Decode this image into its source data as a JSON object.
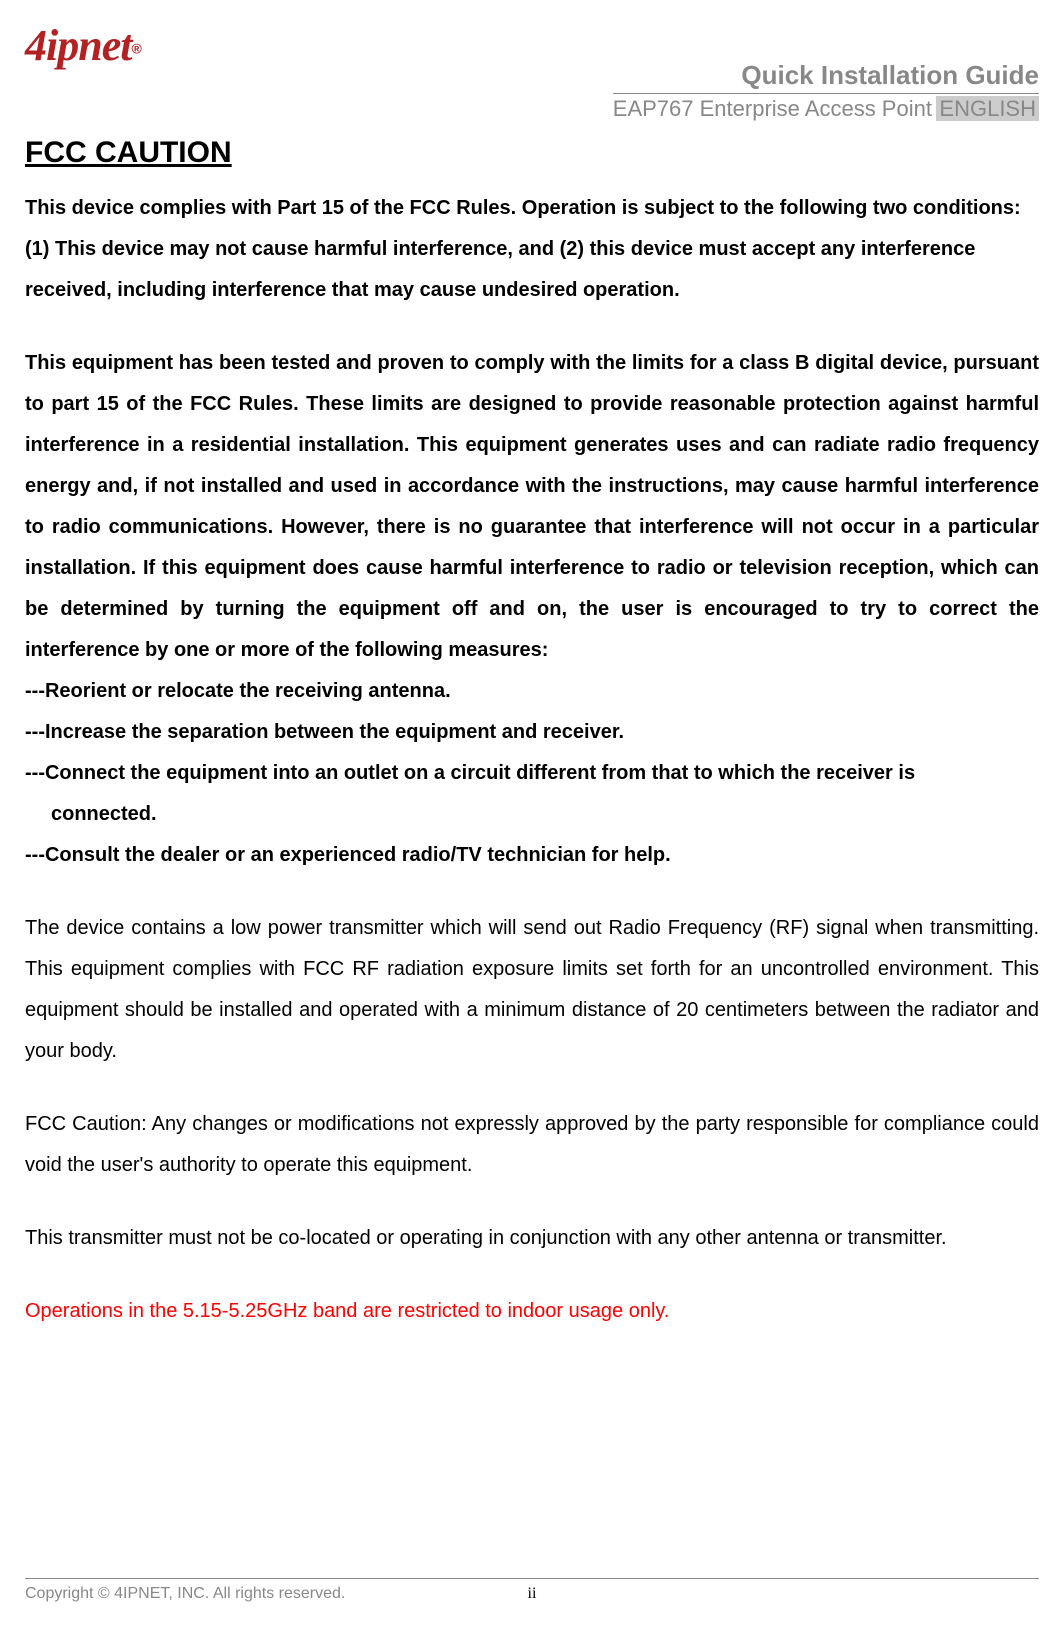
{
  "logo": {
    "brand": "4ipnet",
    "registered": "®"
  },
  "header": {
    "guide_title": "Quick Installation Guide",
    "product": "EAP767 Enterprise Access Point",
    "language": "ENGLISH"
  },
  "heading": "FCC CAUTION",
  "paragraphs": {
    "p1": "This device complies with Part 15 of the FCC Rules. Operation is subject to the following two conditions: (1) This device may not cause harmful interference, and (2) this device must accept any interference received, including interference that may cause undesired operation.",
    "p2": "This equipment has been tested and proven to comply with the limits for a class B digital device, pursuant to part 15 of the FCC Rules. These limits are designed to provide reasonable protection against harmful interference in a residential installation. This equipment generates uses and can radiate radio frequency energy and, if not installed and used in accordance with the instructions, may cause harmful interference to radio communications. However, there is no guarantee that interference will not occur in a particular installation. If this equipment does cause harmful interference to radio or television reception, which can be determined by turning the equipment off and on, the user is encouraged to try to correct the interference by one or more of the following measures:",
    "m1": "---Reorient or relocate the receiving antenna.",
    "m2": "---Increase the separation between the equipment and receiver.",
    "m3a": "---Connect the equipment into an outlet on a circuit different from that to which the receiver is",
    "m3b": "connected.",
    "m4": "---Consult the dealer or an experienced radio/TV technician for help.",
    "p3": "The device contains a low power transmitter which will send out Radio Frequency (RF) signal when transmitting. This equipment complies with FCC RF radiation exposure limits set forth for an uncontrolled environment. This equipment should be installed and operated with a minimum distance of 20 centimeters between the radiator and your body.",
    "p4": "FCC Caution: Any changes or modifications not expressly approved by the party responsible for compliance could void the user's authority to operate this equipment.",
    "p5": "This transmitter must not be co-located or operating in conjunction with any other antenna or transmitter.",
    "p6": "Operations in the 5.15-5.25GHz band are restricted to indoor usage only."
  },
  "footer": {
    "copyright": "Copyright © 4IPNET, INC. All rights reserved.",
    "page_number": "ii"
  },
  "style": {
    "brand_color": "#b22222",
    "header_gray": "#888888",
    "red_text": "#ff0000",
    "black": "#000000",
    "body_font_size": 20,
    "heading_font_size": 30
  }
}
